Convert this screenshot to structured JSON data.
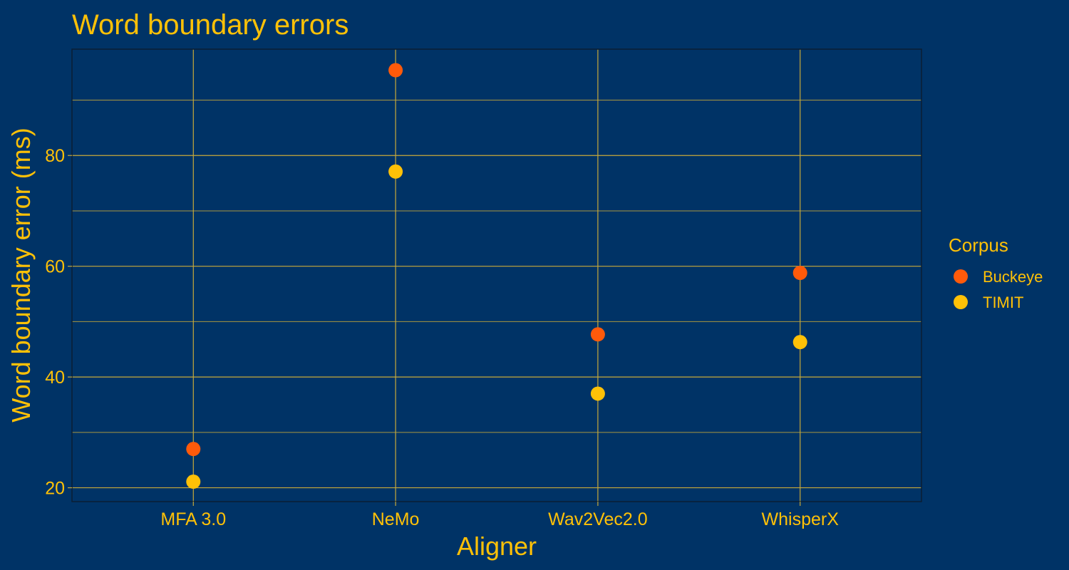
{
  "chart_data": {
    "type": "scatter",
    "title": "Word boundary errors",
    "xlabel": "Aligner",
    "ylabel": "Word boundary error (ms)",
    "categories": [
      "MFA 3.0",
      "NeMo",
      "Wav2Vec2.0",
      "WhisperX"
    ],
    "ylim": [
      17.5,
      99.2
    ],
    "y_major_ticks": [
      20,
      40,
      60,
      80
    ],
    "y_minor_ticks": [
      30,
      50,
      70,
      90
    ],
    "legend": {
      "title": "Corpus",
      "position": "right"
    },
    "series": [
      {
        "name": "Buckeye",
        "color": "#FF5A0A",
        "values": [
          27.0,
          95.4,
          47.7,
          58.8
        ]
      },
      {
        "name": "TIMIT",
        "color": "#FFC107",
        "values": [
          21.1,
          77.1,
          37.0,
          46.3
        ]
      }
    ]
  },
  "colors": {
    "background": "#003366",
    "text": "#FFC107",
    "grid": "#C8A93A",
    "panel_border": "#0B1E33"
  }
}
